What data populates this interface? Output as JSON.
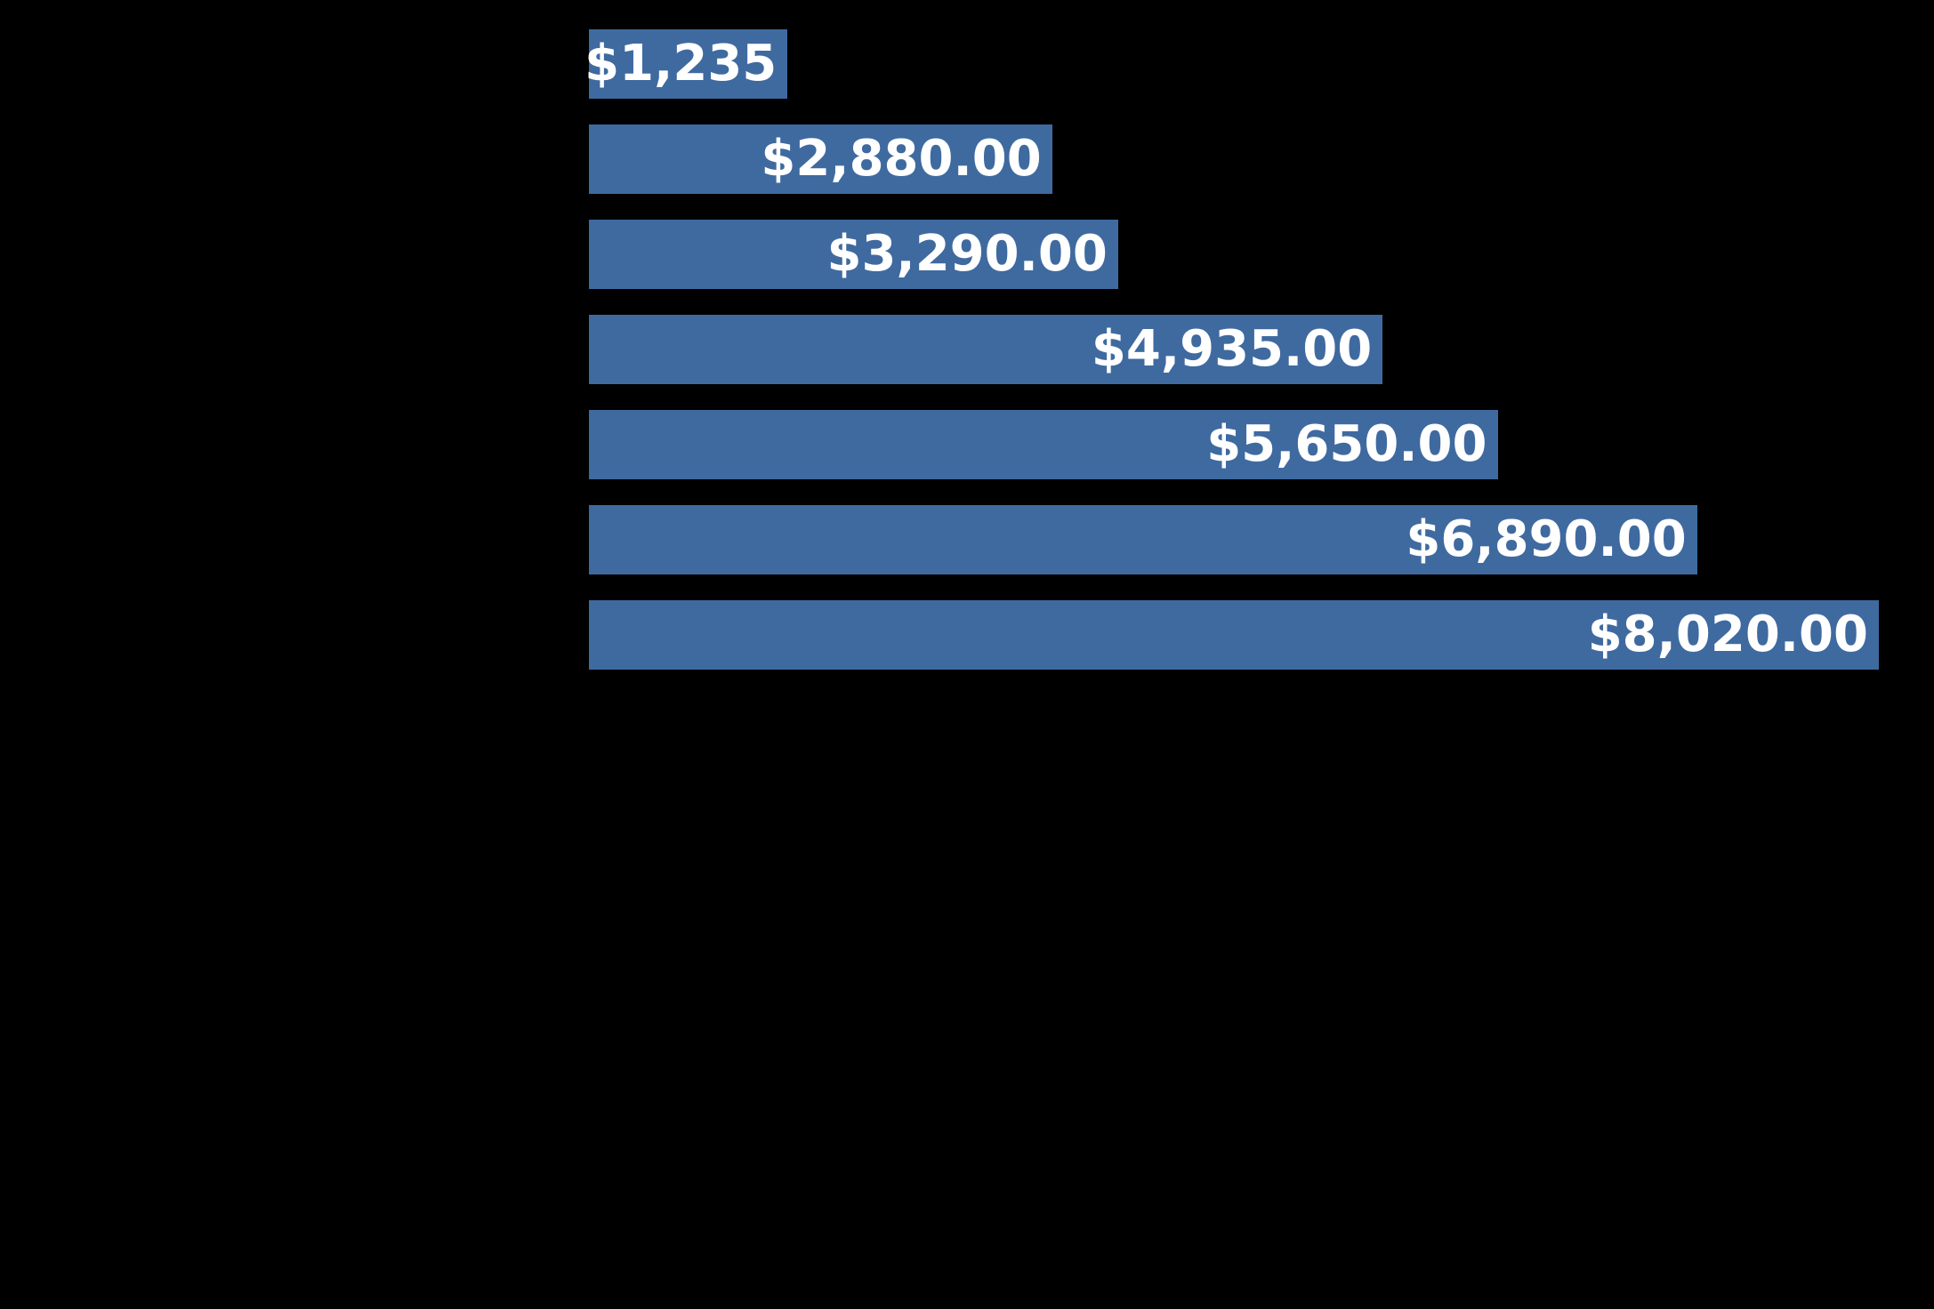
{
  "chart_data": {
    "type": "bar",
    "orientation": "horizontal",
    "bars": [
      {
        "value": 1235,
        "label": "$1,235"
      },
      {
        "value": 2880,
        "label": "$2,880.00"
      },
      {
        "value": 3290,
        "label": "$3,290.00"
      },
      {
        "value": 4935,
        "label": "$4,935.00"
      },
      {
        "value": 5650,
        "label": "$5,650.00"
      },
      {
        "value": 6890,
        "label": "$6,890.00"
      },
      {
        "value": 8020,
        "label": "$8,020.00"
      }
    ],
    "value_axis_range": [
      0,
      8020
    ],
    "label_position": "inside-end",
    "bar_color": "#3F6AA0",
    "label_color": "#FFFFFF",
    "background_color": "#000000",
    "grid": false,
    "legend": "none"
  }
}
